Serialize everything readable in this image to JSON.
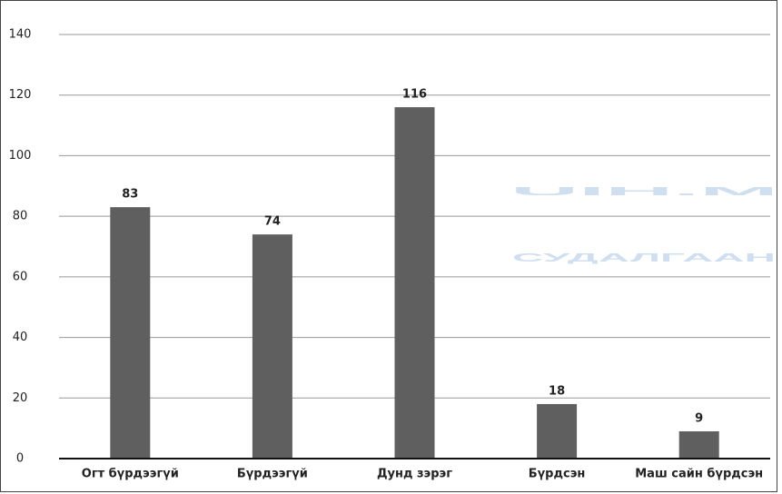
{
  "chart_data": {
    "type": "bar",
    "watermark": [
      "UIH.M",
      "СУДАЛГААН"
    ],
    "categories": [
      "Огт бүрдээгүй",
      "Бүрдээгүй",
      "Дунд зэрэг",
      "Бүрдсэн",
      "Маш сайн бүрдсэн"
    ],
    "values": [
      83,
      74,
      116,
      18,
      9
    ],
    "color": "#5f5f5f",
    "ylim": [
      0,
      140
    ],
    "yticks": [
      0,
      20,
      40,
      60,
      80,
      100,
      120,
      140
    ],
    "grid": true
  }
}
